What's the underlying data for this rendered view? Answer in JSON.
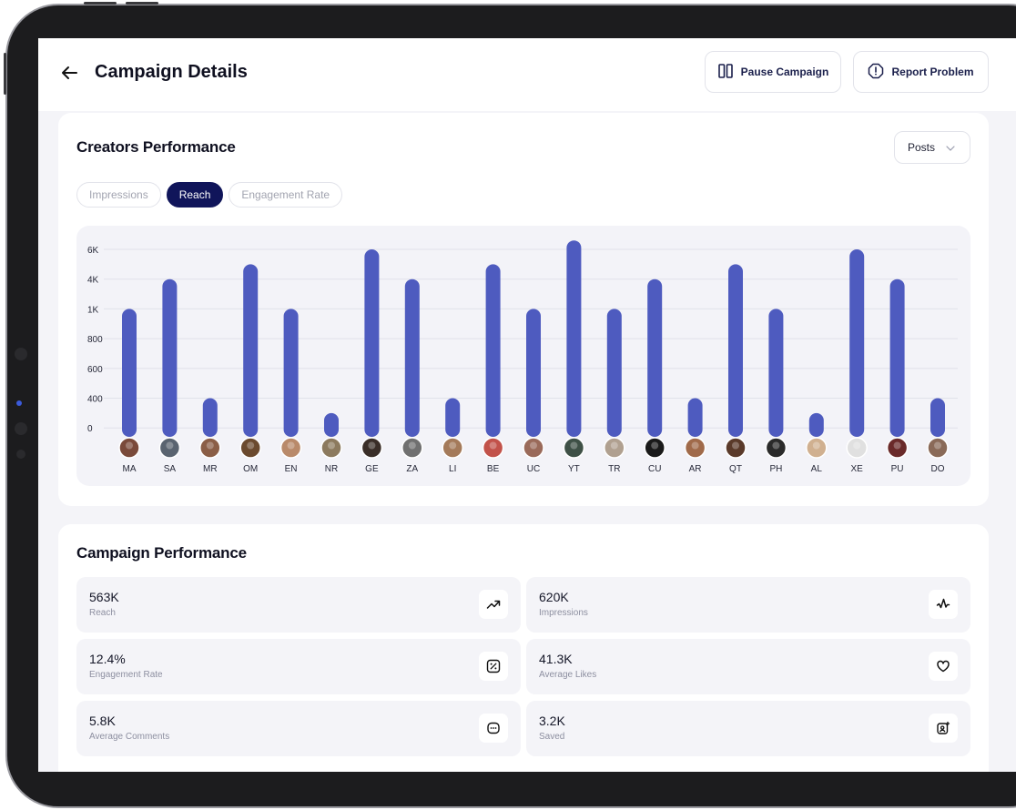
{
  "header": {
    "title": "Campaign Details",
    "pause_label": "Pause Campaign",
    "report_label": "Report Problem"
  },
  "creators": {
    "title": "Creators Performance",
    "dropdown_value": "Posts",
    "tabs": [
      {
        "label": "Impressions",
        "active": false
      },
      {
        "label": "Reach",
        "active": true
      },
      {
        "label": "Engagement Rate",
        "active": false
      }
    ]
  },
  "chart_data": {
    "type": "bar",
    "title": "",
    "xlabel": "",
    "ylabel": "",
    "yticks": [
      "6K",
      "4K",
      "1K",
      "800",
      "600",
      "400",
      "0"
    ],
    "categories": [
      "MA",
      "SA",
      "MR",
      "OM",
      "EN",
      "NR",
      "GE",
      "ZA",
      "LI",
      "BE",
      "UC",
      "YT",
      "TR",
      "CU",
      "AR",
      "QT",
      "PH",
      "AL",
      "XE",
      "PU",
      "DO"
    ],
    "series": [
      {
        "values": [
          "1K",
          "4K",
          "400",
          "5K",
          "1K",
          "200",
          "6K",
          "4K",
          "400",
          "5K",
          "1K",
          "6.6K",
          "1K",
          "4K",
          "400",
          "5K",
          "1K",
          "200",
          "6K",
          "4K",
          "400"
        ]
      }
    ],
    "bar_color": "#4e5bbf",
    "grid": true,
    "legend": "none"
  },
  "campaign": {
    "title": "Campaign Performance",
    "stats": [
      {
        "value": "563K",
        "label": "Reach",
        "icon": "trending-up-icon"
      },
      {
        "value": "620K",
        "label": "Impressions",
        "icon": "activity-icon"
      },
      {
        "value": "12.4%",
        "label": "Engagement Rate",
        "icon": "percent-icon"
      },
      {
        "value": "41.3K",
        "label": "Average Likes",
        "icon": "heart-icon"
      },
      {
        "value": "5.8K",
        "label": "Average Comments",
        "icon": "comment-icon"
      },
      {
        "value": "3.2K",
        "label": "Saved",
        "icon": "saved-user-icon"
      }
    ]
  },
  "colors": {
    "accent": "#10155a",
    "bar": "#4e5bbf"
  }
}
